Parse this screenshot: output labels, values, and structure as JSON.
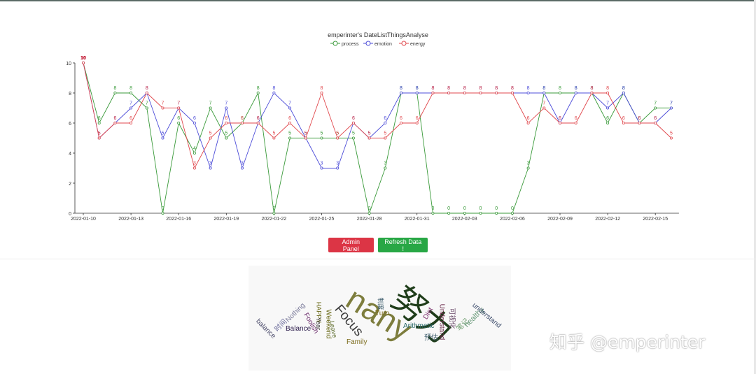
{
  "chart_data": {
    "type": "line",
    "title": "emperinter's DateListThingsAnalyse",
    "x": [
      "2022-01-10",
      "2022-01-11",
      "2022-01-12",
      "2022-01-13",
      "2022-01-14",
      "2022-01-15",
      "2022-01-16",
      "2022-01-17",
      "2022-01-18",
      "2022-01-19",
      "2022-01-20",
      "2022-01-21",
      "2022-01-22",
      "2022-01-23",
      "2022-01-24",
      "2022-01-25",
      "2022-01-26",
      "2022-01-27",
      "2022-01-28",
      "2022-01-29",
      "2022-01-30",
      "2022-01-31",
      "2022-02-01",
      "2022-02-02",
      "2022-02-03",
      "2022-02-04",
      "2022-02-05",
      "2022-02-06",
      "2022-02-07",
      "2022-02-08",
      "2022-02-09",
      "2022-02-10",
      "2022-02-11",
      "2022-02-12",
      "2022-02-13",
      "2022-02-14",
      "2022-02-15",
      "2022-02-16"
    ],
    "x_tick_labels": [
      "2022-01-10",
      "2022-01-13",
      "2022-01-16",
      "2022-01-19",
      "2022-01-22",
      "2022-01-25",
      "2022-01-28",
      "2022-01-31",
      "2022-02-03",
      "2022-02-06",
      "2022-02-09",
      "2022-02-12",
      "2022-02-15"
    ],
    "ylim": [
      0,
      10
    ],
    "y_ticks": [
      0,
      2,
      4,
      6,
      8,
      10
    ],
    "legend_position": "top-center",
    "series": [
      {
        "name": "process",
        "color": "#3a9a3a",
        "values": [
          10,
          6,
          8,
          8,
          7,
          0,
          6,
          4,
          7,
          5,
          6,
          8,
          0,
          5,
          5,
          5,
          5,
          5,
          0,
          3,
          8,
          8,
          0,
          0,
          0,
          0,
          0,
          0,
          3,
          8,
          8,
          8,
          8,
          6,
          8,
          6,
          7,
          7
        ]
      },
      {
        "name": "emotion",
        "color": "#4c4cd8",
        "values": [
          10,
          5,
          6,
          7,
          8,
          5,
          7,
          6,
          3,
          7,
          3,
          6,
          8,
          7,
          5,
          3,
          3,
          6,
          5,
          6,
          8,
          8,
          8,
          8,
          8,
          8,
          8,
          8,
          8,
          8,
          6,
          8,
          8,
          7,
          8,
          6,
          6,
          7
        ]
      },
      {
        "name": "energy",
        "color": "#e0474c",
        "values": [
          10,
          5,
          6,
          6,
          8,
          7,
          7,
          3,
          5,
          6,
          6,
          6,
          5,
          6,
          5,
          8,
          5,
          6,
          5,
          5,
          6,
          6,
          8,
          8,
          8,
          8,
          8,
          8,
          6,
          7,
          6,
          6,
          8,
          8,
          6,
          6,
          6,
          5
        ]
      }
    ]
  },
  "buttons": {
    "admin_label": "Admin Panel",
    "refresh_label": "Refresh Data !"
  },
  "wordcloud": {
    "words": [
      {
        "text": "nany",
        "color": "#7d7d3d"
      },
      {
        "text": "努力",
        "color": "#1f3d1a"
      },
      {
        "text": "Focus",
        "color": "#3a3a3a"
      },
      {
        "text": "Arithmetic",
        "color": "#2a6a6a"
      },
      {
        "text": "HAPPY",
        "color": "#6a6a1a"
      },
      {
        "text": "Weekend",
        "color": "#6a6a1a"
      },
      {
        "text": "Year",
        "color": "#333333"
      },
      {
        "text": "Leave",
        "color": "#5a6a2a"
      },
      {
        "text": "Family",
        "color": "#7a6a1a"
      },
      {
        "text": "Turn",
        "color": "#7a6a1a"
      },
      {
        "text": "Foolish",
        "color": "#6a2a6a"
      },
      {
        "text": "Balance",
        "color": "#2a1a4a"
      },
      {
        "text": "Nothing",
        "color": "#7a7a9a"
      },
      {
        "text": "时间",
        "color": "#6a6a9a"
      },
      {
        "text": "balance",
        "color": "#4a4a6a"
      },
      {
        "text": "Diet",
        "color": "#7a2a6a"
      },
      {
        "text": "Understand",
        "color": "#6a2a4a"
      },
      {
        "text": "可视化",
        "color": "#6a4a6a"
      },
      {
        "text": "预估",
        "color": "#3a5a6a"
      },
      {
        "text": "笔记",
        "color": "#6a9a6a"
      },
      {
        "text": "healthy",
        "color": "#6a9a7a"
      },
      {
        "text": "understand",
        "color": "#3a4a6a"
      },
      {
        "text": "制度",
        "color": "#3a5a6a"
      }
    ]
  },
  "watermark": {
    "text": "知乎 @emperinter"
  }
}
